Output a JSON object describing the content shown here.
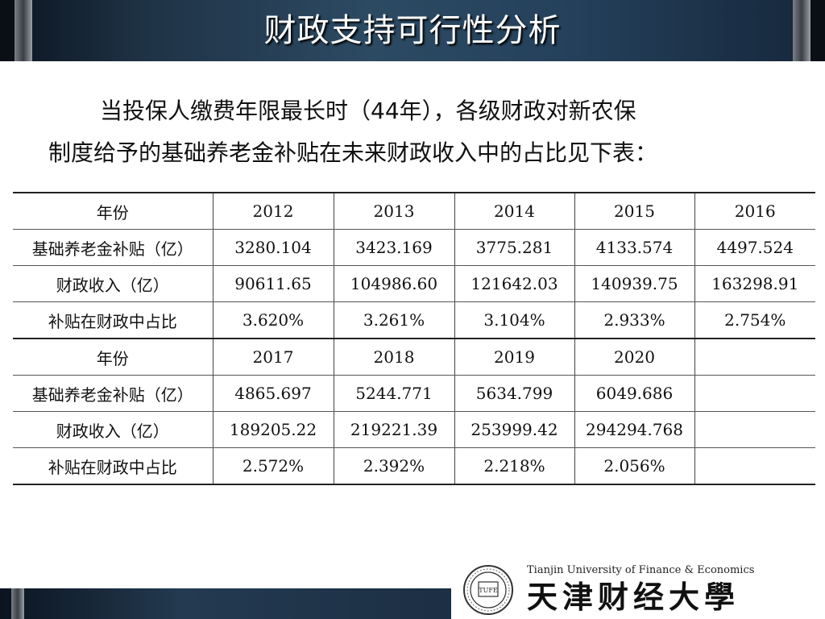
{
  "slide": {
    "title": "财政支持可行性分析",
    "intro_line1": "当投保人缴费年限最长时（44年），各级财政对新农保",
    "intro_line2": "制度给予的基础养老金补贴在未来财政收入中的占比见下表："
  },
  "table": {
    "blocks": [
      {
        "rows": [
          [
            "年份",
            "2012",
            "2013",
            "2014",
            "2015",
            "2016"
          ],
          [
            "基础养老金补贴（亿）",
            "3280.104",
            "3423.169",
            "3775.281",
            "4133.574",
            "4497.524"
          ],
          [
            "财政收入（亿）",
            "90611.65",
            "104986.60",
            "121642.03",
            "140939.75",
            "163298.91"
          ],
          [
            "补贴在财政中占比",
            "3.620%",
            "3.261%",
            "3.104%",
            "2.933%",
            "2.754%"
          ]
        ]
      },
      {
        "rows": [
          [
            "年份",
            "2017",
            "2018",
            "2019",
            "2020",
            ""
          ],
          [
            "基础养老金补贴（亿）",
            "4865.697",
            "5244.771",
            "5634.799",
            "6049.686",
            ""
          ],
          [
            "财政收入（亿）",
            "189205.22",
            "219221.39",
            "253999.42",
            "294294.768",
            ""
          ],
          [
            "补贴在财政中占比",
            "2.572%",
            "2.392%",
            "2.218%",
            "2.056%",
            ""
          ]
        ]
      }
    ]
  },
  "logo": {
    "university_en": "Tianjin University of Finance & Economics",
    "university_cn": "天津财经大學",
    "seal_text": "TUFE",
    "icon": "university-seal-icon"
  },
  "colors": {
    "title_bar": "#24405a",
    "title_text": "#ffffff"
  }
}
